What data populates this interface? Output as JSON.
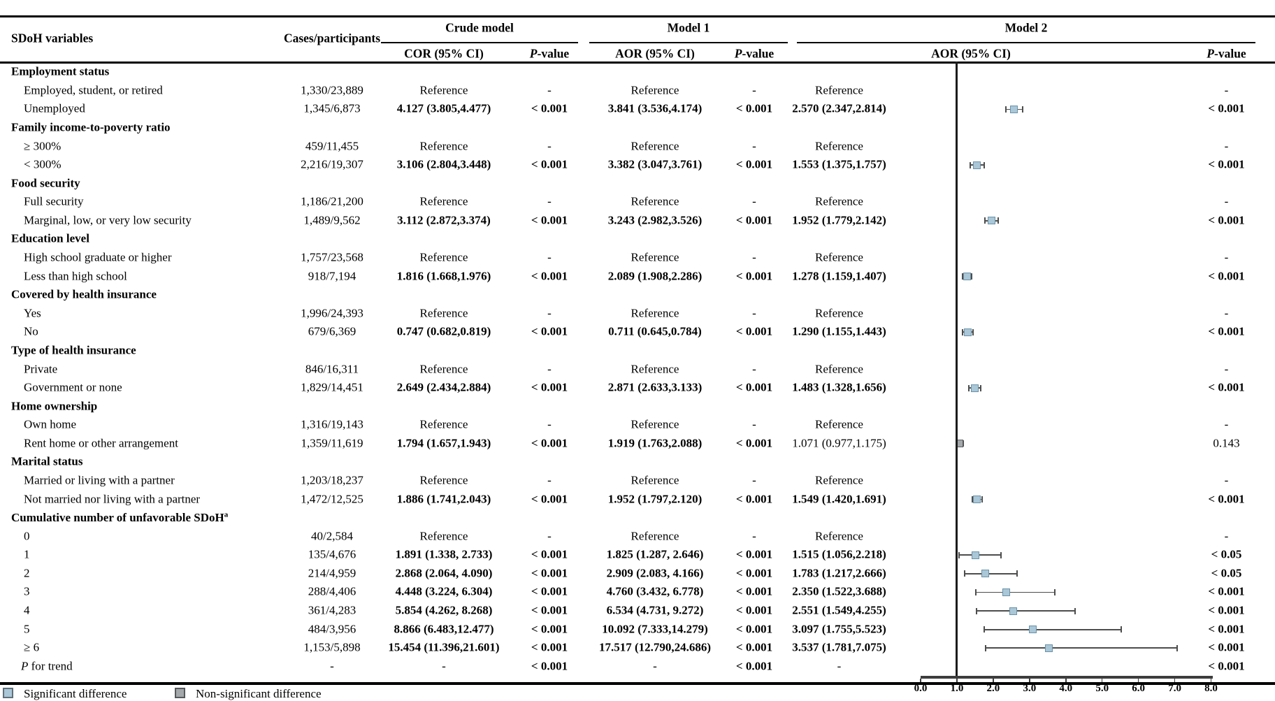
{
  "header": {
    "col_variable": "SDoH variables",
    "col_cases": "Cases/participants",
    "group_crude": "Crude model",
    "group_model1": "Model 1",
    "group_model2": "Model 2",
    "col_cor": "COR (95% CI)",
    "col_aor1": "AOR (95% CI)",
    "col_aor2": "AOR (95% CI)",
    "pvalue": {
      "i": "P",
      "r": "-value"
    }
  },
  "axis": {
    "ticks": [
      "0.0",
      "1.0",
      "2.0",
      "3.0",
      "4.0",
      "5.0",
      "6.0",
      "7.0",
      "8.0"
    ],
    "min": 0,
    "max": 8,
    "reference_line": 1.0
  },
  "legend": [
    {
      "label": "Significant difference",
      "type": "significant"
    },
    {
      "label": "Non-significant difference",
      "type": "nonsignificant"
    }
  ],
  "colors": {
    "significant_fill": "#aac7d8",
    "significant_border": "#6b92a8",
    "nonsignificant_fill": "#a4a8ab",
    "nonsignificant_border": "#595d5f",
    "errorbar": "#4d4d4d"
  },
  "rows": [
    {
      "t": "group",
      "label": "Employment status"
    },
    {
      "t": "item",
      "label": "Employed, student, or retired",
      "cells": {
        "cases": [
          "1,330/23,889",
          0
        ],
        "cor": [
          "Reference",
          0
        ],
        "p1": [
          "-",
          0
        ],
        "aor1": [
          "Reference",
          0
        ],
        "p2": [
          "-",
          0
        ],
        "aor2": [
          "Reference",
          0
        ],
        "p3": [
          "-",
          0
        ]
      }
    },
    {
      "t": "item",
      "label": "Unemployed",
      "cells": {
        "cases": [
          "1,345/6,873",
          0
        ],
        "cor": [
          "4.127 (3.805,4.477)",
          1
        ],
        "p1": [
          "< 0.001",
          1
        ],
        "aor1": [
          "3.841 (3.536,4.174)",
          1
        ],
        "p2": [
          "< 0.001",
          1
        ],
        "aor2": [
          "2.570 (2.347,2.814)",
          1
        ],
        "p3": [
          "< 0.001",
          1
        ]
      },
      "forest": {
        "v": 2.57,
        "lo": 2.347,
        "hi": 2.814,
        "sig": true
      }
    },
    {
      "t": "group",
      "label": "Family income-to-poverty ratio"
    },
    {
      "t": "item",
      "label": "≥ 300%",
      "cells": {
        "cases": [
          "459/11,455",
          0
        ],
        "cor": [
          "Reference",
          0
        ],
        "p1": [
          "-",
          0
        ],
        "aor1": [
          "Reference",
          0
        ],
        "p2": [
          "-",
          0
        ],
        "aor2": [
          "Reference",
          0
        ],
        "p3": [
          "-",
          0
        ]
      }
    },
    {
      "t": "item",
      "label": "< 300%",
      "cells": {
        "cases": [
          "2,216/19,307",
          0
        ],
        "cor": [
          "3.106 (2.804,3.448)",
          1
        ],
        "p1": [
          "< 0.001",
          1
        ],
        "aor1": [
          "3.382 (3.047,3.761)",
          1
        ],
        "p2": [
          "< 0.001",
          1
        ],
        "aor2": [
          "1.553 (1.375,1.757)",
          1
        ],
        "p3": [
          "< 0.001",
          1
        ]
      },
      "forest": {
        "v": 1.553,
        "lo": 1.375,
        "hi": 1.757,
        "sig": true
      }
    },
    {
      "t": "group",
      "label": "Food security"
    },
    {
      "t": "item",
      "label": "Full security",
      "cells": {
        "cases": [
          "1,186/21,200",
          0
        ],
        "cor": [
          "Reference",
          0
        ],
        "p1": [
          "-",
          0
        ],
        "aor1": [
          "Reference",
          0
        ],
        "p2": [
          "-",
          0
        ],
        "aor2": [
          "Reference",
          0
        ],
        "p3": [
          "-",
          0
        ]
      }
    },
    {
      "t": "item",
      "label": "Marginal, low, or very low security",
      "cells": {
        "cases": [
          "1,489/9,562",
          0
        ],
        "cor": [
          "3.112 (2.872,3.374)",
          1
        ],
        "p1": [
          "< 0.001",
          1
        ],
        "aor1": [
          "3.243 (2.982,3.526)",
          1
        ],
        "p2": [
          "< 0.001",
          1
        ],
        "aor2": [
          "1.952 (1.779,2.142)",
          1
        ],
        "p3": [
          "< 0.001",
          1
        ]
      },
      "forest": {
        "v": 1.952,
        "lo": 1.779,
        "hi": 2.142,
        "sig": true
      }
    },
    {
      "t": "group",
      "label": "Education level"
    },
    {
      "t": "item",
      "label": "High school graduate or higher",
      "cells": {
        "cases": [
          "1,757/23,568",
          0
        ],
        "cor": [
          "Reference",
          0
        ],
        "p1": [
          "-",
          0
        ],
        "aor1": [
          "Reference",
          0
        ],
        "p2": [
          "-",
          0
        ],
        "aor2": [
          "Reference",
          0
        ],
        "p3": [
          "-",
          0
        ]
      }
    },
    {
      "t": "item",
      "label": "Less than high school",
      "cells": {
        "cases": [
          "918/7,194",
          0
        ],
        "cor": [
          "1.816 (1.668,1.976)",
          1
        ],
        "p1": [
          "< 0.001",
          1
        ],
        "aor1": [
          "2.089 (1.908,2.286)",
          1
        ],
        "p2": [
          "< 0.001",
          1
        ],
        "aor2": [
          "1.278 (1.159,1.407)",
          1
        ],
        "p3": [
          "< 0.001",
          1
        ]
      },
      "forest": {
        "v": 1.278,
        "lo": 1.159,
        "hi": 1.407,
        "sig": true
      }
    },
    {
      "t": "group",
      "label": "Covered by health insurance"
    },
    {
      "t": "item",
      "label": "Yes",
      "cells": {
        "cases": [
          "1,996/24,393",
          0
        ],
        "cor": [
          "Reference",
          0
        ],
        "p1": [
          "-",
          0
        ],
        "aor1": [
          "Reference",
          0
        ],
        "p2": [
          "-",
          0
        ],
        "aor2": [
          "Reference",
          0
        ],
        "p3": [
          "-",
          0
        ]
      }
    },
    {
      "t": "item",
      "label": "No",
      "cells": {
        "cases": [
          "679/6,369",
          0
        ],
        "cor": [
          "0.747 (0.682,0.819)",
          1
        ],
        "p1": [
          "< 0.001",
          1
        ],
        "aor1": [
          "0.711 (0.645,0.784)",
          1
        ],
        "p2": [
          "< 0.001",
          1
        ],
        "aor2": [
          "1.290 (1.155,1.443)",
          1
        ],
        "p3": [
          "< 0.001",
          1
        ]
      },
      "forest": {
        "v": 1.29,
        "lo": 1.155,
        "hi": 1.443,
        "sig": true
      }
    },
    {
      "t": "group",
      "label": "Type of health insurance"
    },
    {
      "t": "item",
      "label": "Private",
      "cells": {
        "cases": [
          "846/16,311",
          0
        ],
        "cor": [
          "Reference",
          0
        ],
        "p1": [
          "-",
          0
        ],
        "aor1": [
          "Reference",
          0
        ],
        "p2": [
          "-",
          0
        ],
        "aor2": [
          "Reference",
          0
        ],
        "p3": [
          "-",
          0
        ]
      }
    },
    {
      "t": "item",
      "label": "Government or none",
      "cells": {
        "cases": [
          "1,829/14,451",
          0
        ],
        "cor": [
          "2.649 (2.434,2.884)",
          1
        ],
        "p1": [
          "< 0.001",
          1
        ],
        "aor1": [
          "2.871 (2.633,3.133)",
          1
        ],
        "p2": [
          "< 0.001",
          1
        ],
        "aor2": [
          "1.483 (1.328,1.656)",
          1
        ],
        "p3": [
          "< 0.001",
          1
        ]
      },
      "forest": {
        "v": 1.483,
        "lo": 1.328,
        "hi": 1.656,
        "sig": true
      }
    },
    {
      "t": "group",
      "label": "Home ownership"
    },
    {
      "t": "item",
      "label": "Own home",
      "cells": {
        "cases": [
          "1,316/19,143",
          0
        ],
        "cor": [
          "Reference",
          0
        ],
        "p1": [
          "-",
          0
        ],
        "aor1": [
          "Reference",
          0
        ],
        "p2": [
          "-",
          0
        ],
        "aor2": [
          "Reference",
          0
        ],
        "p3": [
          "-",
          0
        ]
      }
    },
    {
      "t": "item",
      "label": "Rent home or other arrangement",
      "cells": {
        "cases": [
          "1,359/11,619",
          0
        ],
        "cor": [
          "1.794 (1.657,1.943)",
          1
        ],
        "p1": [
          "< 0.001",
          1
        ],
        "aor1": [
          "1.919 (1.763,2.088)",
          1
        ],
        "p2": [
          "< 0.001",
          1
        ],
        "aor2": [
          "1.071 (0.977,1.175)",
          0
        ],
        "p3": [
          "0.143",
          0
        ]
      },
      "forest": {
        "v": 1.071,
        "lo": 0.977,
        "hi": 1.175,
        "sig": false
      }
    },
    {
      "t": "group",
      "label": "Marital status"
    },
    {
      "t": "item",
      "label": "Married or living with a partner",
      "cells": {
        "cases": [
          "1,203/18,237",
          0
        ],
        "cor": [
          "Reference",
          0
        ],
        "p1": [
          "-",
          0
        ],
        "aor1": [
          "Reference",
          0
        ],
        "p2": [
          "-",
          0
        ],
        "aor2": [
          "Reference",
          0
        ],
        "p3": [
          "-",
          0
        ]
      }
    },
    {
      "t": "item",
      "label": "Not married nor living with a partner",
      "cells": {
        "cases": [
          "1,472/12,525",
          0
        ],
        "cor": [
          "1.886 (1.741,2.043)",
          1
        ],
        "p1": [
          "< 0.001",
          1
        ],
        "aor1": [
          "1.952 (1.797,2.120)",
          1
        ],
        "p2": [
          "< 0.001",
          1
        ],
        "aor2": [
          "1.549 (1.420,1.691)",
          1
        ],
        "p3": [
          "< 0.001",
          1
        ]
      },
      "forest": {
        "v": 1.549,
        "lo": 1.42,
        "hi": 1.691,
        "sig": true
      }
    },
    {
      "t": "group",
      "label": "Cumulative number of unfavorable SDoH",
      "sup": "a"
    },
    {
      "t": "item",
      "label": "0",
      "cells": {
        "cases": [
          "40/2,584",
          0
        ],
        "cor": [
          "Reference",
          0
        ],
        "p1": [
          "-",
          0
        ],
        "aor1": [
          "Reference",
          0
        ],
        "p2": [
          "-",
          0
        ],
        "aor2": [
          "Reference",
          0
        ],
        "p3": [
          "-",
          0
        ]
      }
    },
    {
      "t": "item",
      "label": "1",
      "cells": {
        "cases": [
          "135/4,676",
          0
        ],
        "cor": [
          "1.891 (1.338, 2.733)",
          1
        ],
        "p1": [
          "< 0.001",
          1
        ],
        "aor1": [
          "1.825 (1.287, 2.646)",
          1
        ],
        "p2": [
          "< 0.001",
          1
        ],
        "aor2": [
          "1.515 (1.056,2.218)",
          1
        ],
        "p3": [
          "< 0.05",
          1
        ]
      },
      "forest": {
        "v": 1.515,
        "lo": 1.056,
        "hi": 2.218,
        "sig": true
      }
    },
    {
      "t": "item",
      "label": "2",
      "cells": {
        "cases": [
          "214/4,959",
          0
        ],
        "cor": [
          "2.868 (2.064, 4.090)",
          1
        ],
        "p1": [
          "< 0.001",
          1
        ],
        "aor1": [
          "2.909 (2.083, 4.166)",
          1
        ],
        "p2": [
          "< 0.001",
          1
        ],
        "aor2": [
          "1.783 (1.217,2.666)",
          1
        ],
        "p3": [
          "< 0.05",
          1
        ]
      },
      "forest": {
        "v": 1.783,
        "lo": 1.217,
        "hi": 2.666,
        "sig": true
      }
    },
    {
      "t": "item",
      "label": "3",
      "cells": {
        "cases": [
          "288/4,406",
          0
        ],
        "cor": [
          "4.448 (3.224, 6.304)",
          1
        ],
        "p1": [
          "< 0.001",
          1
        ],
        "aor1": [
          "4.760 (3.432, 6.778)",
          1
        ],
        "p2": [
          "< 0.001",
          1
        ],
        "aor2": [
          "2.350 (1.522,3.688)",
          1
        ],
        "p3": [
          "< 0.001",
          1
        ]
      },
      "forest": {
        "v": 2.35,
        "lo": 1.522,
        "hi": 3.688,
        "sig": true
      }
    },
    {
      "t": "item",
      "label": "4",
      "cells": {
        "cases": [
          "361/4,283",
          0
        ],
        "cor": [
          "5.854 (4.262, 8.268)",
          1
        ],
        "p1": [
          "< 0.001",
          1
        ],
        "aor1": [
          "6.534 (4.731, 9.272)",
          1
        ],
        "p2": [
          "< 0.001",
          1
        ],
        "aor2": [
          "2.551 (1.549,4.255)",
          1
        ],
        "p3": [
          "< 0.001",
          1
        ]
      },
      "forest": {
        "v": 2.551,
        "lo": 1.549,
        "hi": 4.255,
        "sig": true
      }
    },
    {
      "t": "item",
      "label": "5",
      "cells": {
        "cases": [
          "484/3,956",
          0
        ],
        "cor": [
          "8.866 (6.483,12.477)",
          1
        ],
        "p1": [
          "< 0.001",
          1
        ],
        "aor1": [
          "10.092 (7.333,14.279)",
          1
        ],
        "p2": [
          "< 0.001",
          1
        ],
        "aor2": [
          "3.097 (1.755,5.523)",
          1
        ],
        "p3": [
          "< 0.001",
          1
        ]
      },
      "forest": {
        "v": 3.097,
        "lo": 1.755,
        "hi": 5.523,
        "sig": true
      }
    },
    {
      "t": "item",
      "label": "≥ 6",
      "cells": {
        "cases": [
          "1,153/5,898",
          0
        ],
        "cor": [
          "15.454 (11.396,21.601)",
          1
        ],
        "p1": [
          "< 0.001",
          1
        ],
        "aor1": [
          "17.517 (12.790,24.686)",
          1
        ],
        "p2": [
          "< 0.001",
          1
        ],
        "aor2": [
          "3.537 (1.781,7.075)",
          1
        ],
        "p3": [
          "< 0.001",
          1
        ]
      },
      "forest": {
        "v": 3.537,
        "lo": 1.781,
        "hi": 7.075,
        "sig": true
      }
    },
    {
      "t": "trend",
      "label": "P for trend",
      "ifirst": true,
      "cells": {
        "cases": [
          "-",
          0
        ],
        "cor": [
          "-",
          0
        ],
        "p1": [
          "< 0.001",
          1
        ],
        "aor1": [
          "-",
          0
        ],
        "p2": [
          "< 0.001",
          1
        ],
        "aor2": [
          "-",
          0
        ],
        "p3": [
          "< 0.001",
          1
        ]
      }
    }
  ],
  "chart_data": {
    "type": "scatter",
    "title": "Model 2 AOR (95% CI) forest plot",
    "xlabel": "AOR (95% CI)",
    "xlim": [
      0,
      8
    ],
    "x_ticks": [
      0.0,
      1.0,
      2.0,
      3.0,
      4.0,
      5.0,
      6.0,
      7.0,
      8.0
    ],
    "reference_line": 1.0,
    "grid": false,
    "legend_position": "bottom-left",
    "points": [
      {
        "label": "Unemployed",
        "or": 2.57,
        "ci_low": 2.347,
        "ci_high": 2.814,
        "significant": true
      },
      {
        "label": "< 300%",
        "or": 1.553,
        "ci_low": 1.375,
        "ci_high": 1.757,
        "significant": true
      },
      {
        "label": "Marginal, low, or very low security",
        "or": 1.952,
        "ci_low": 1.779,
        "ci_high": 2.142,
        "significant": true
      },
      {
        "label": "Less than high school",
        "or": 1.278,
        "ci_low": 1.159,
        "ci_high": 1.407,
        "significant": true
      },
      {
        "label": "No (health insurance)",
        "or": 1.29,
        "ci_low": 1.155,
        "ci_high": 1.443,
        "significant": true
      },
      {
        "label": "Government or none",
        "or": 1.483,
        "ci_low": 1.328,
        "ci_high": 1.656,
        "significant": true
      },
      {
        "label": "Rent home or other arrangement",
        "or": 1.071,
        "ci_low": 0.977,
        "ci_high": 1.175,
        "significant": false
      },
      {
        "label": "Not married nor living with a partner",
        "or": 1.549,
        "ci_low": 1.42,
        "ci_high": 1.691,
        "significant": true
      },
      {
        "label": "Cumulative 1",
        "or": 1.515,
        "ci_low": 1.056,
        "ci_high": 2.218,
        "significant": true
      },
      {
        "label": "Cumulative 2",
        "or": 1.783,
        "ci_low": 1.217,
        "ci_high": 2.666,
        "significant": true
      },
      {
        "label": "Cumulative 3",
        "or": 2.35,
        "ci_low": 1.522,
        "ci_high": 3.688,
        "significant": true
      },
      {
        "label": "Cumulative 4",
        "or": 2.551,
        "ci_low": 1.549,
        "ci_high": 4.255,
        "significant": true
      },
      {
        "label": "Cumulative 5",
        "or": 3.097,
        "ci_low": 1.755,
        "ci_high": 5.523,
        "significant": true
      },
      {
        "label": "Cumulative ≥ 6",
        "or": 3.537,
        "ci_low": 1.781,
        "ci_high": 7.075,
        "significant": true
      }
    ]
  }
}
